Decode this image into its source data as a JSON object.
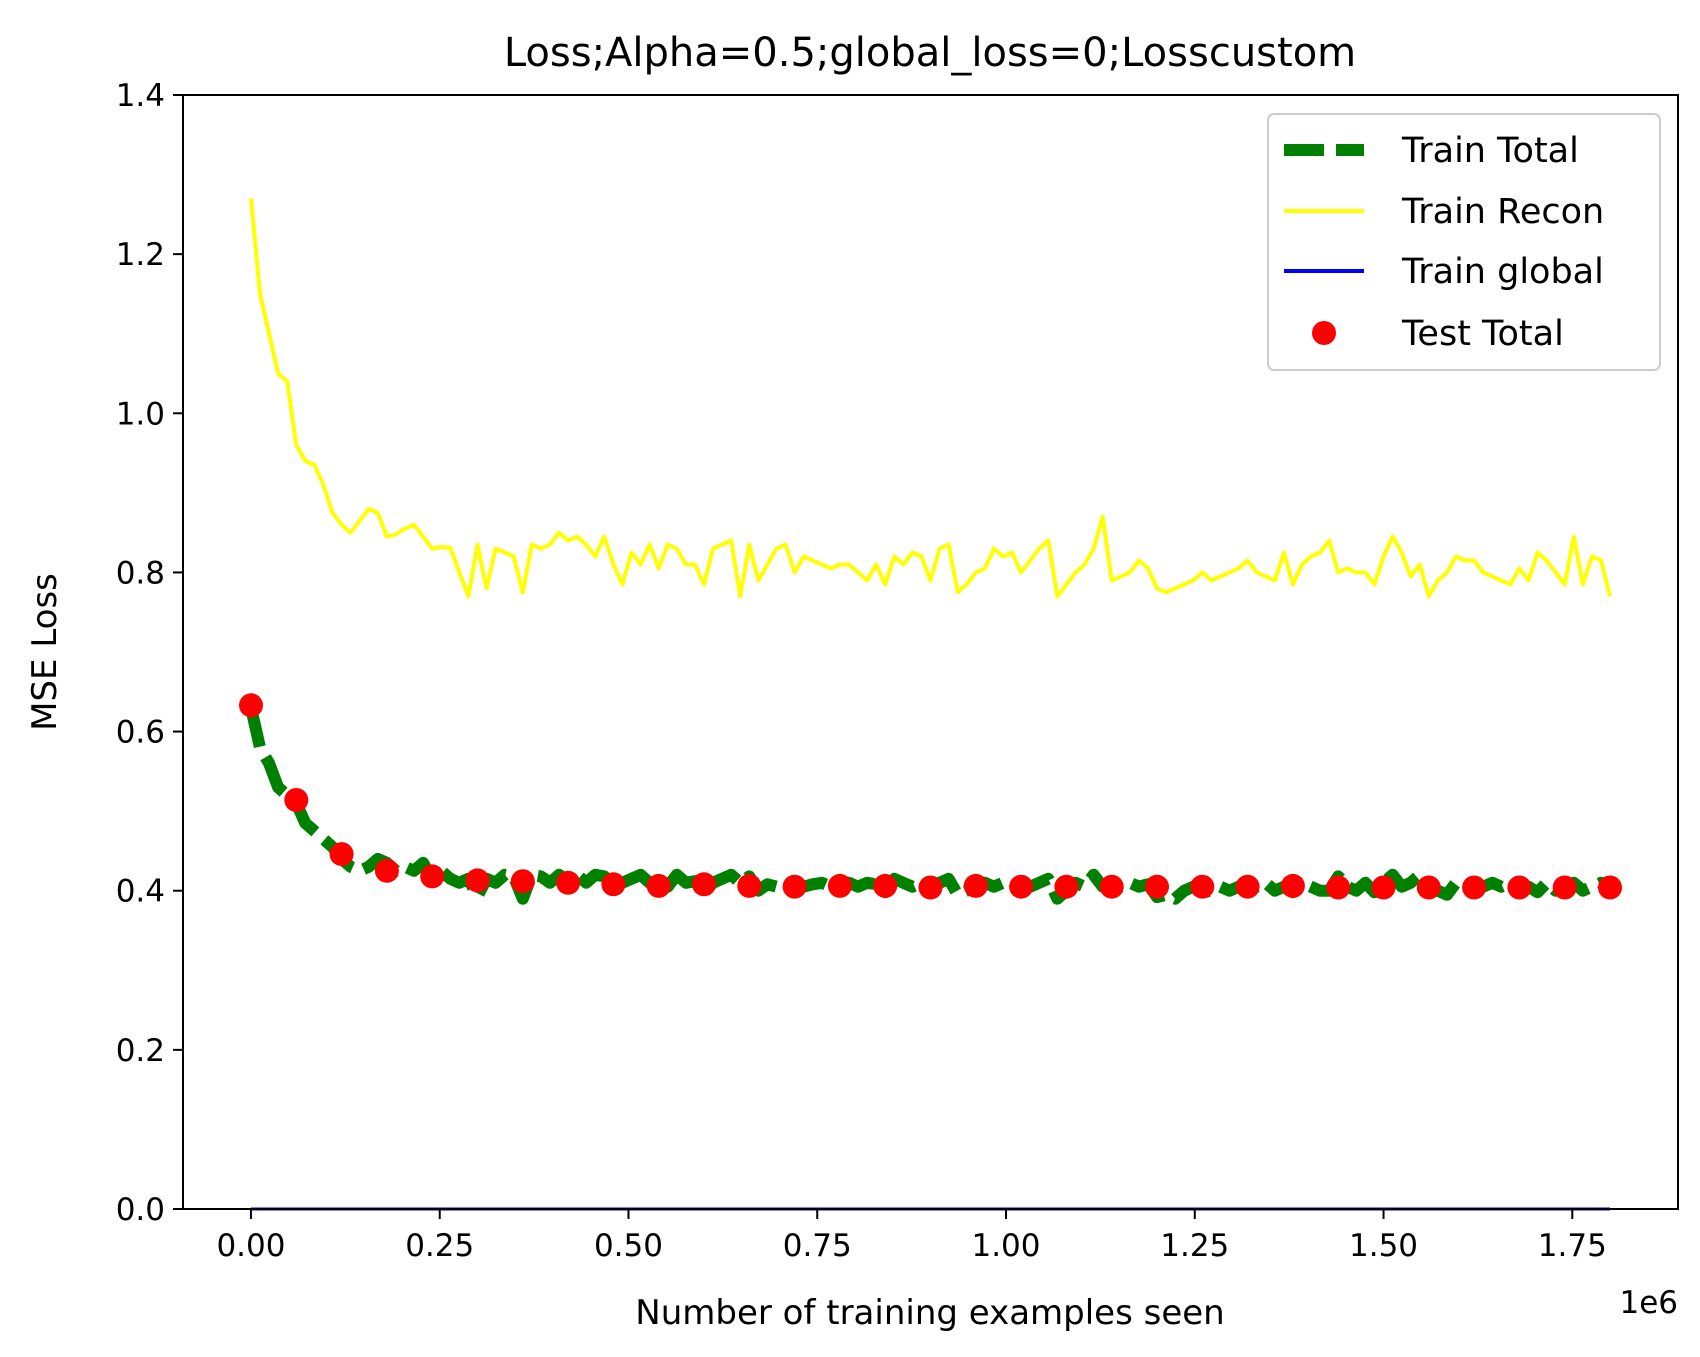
{
  "chart_data": {
    "type": "line",
    "title": "Loss;Alpha=0.5;global_loss=0;Losscustom",
    "xlabel": "Number of training examples seen",
    "ylabel": "MSE Loss",
    "x_offset_label": "1e6",
    "xlim": [
      -0.09,
      1.89
    ],
    "ylim": [
      0.0,
      1.4
    ],
    "x_ticks": [
      0.0,
      0.25,
      0.5,
      0.75,
      1.0,
      1.25,
      1.5,
      1.75
    ],
    "x_tick_labels": [
      "0.00",
      "0.25",
      "0.50",
      "0.75",
      "1.00",
      "1.25",
      "1.50",
      "1.75"
    ],
    "y_ticks": [
      0.0,
      0.2,
      0.4,
      0.6,
      0.8,
      1.0,
      1.2,
      1.4
    ],
    "y_tick_labels": [
      "0.0",
      "0.2",
      "0.4",
      "0.6",
      "0.8",
      "1.0",
      "1.2",
      "1.4"
    ],
    "grid": false,
    "legend_position": "top-right",
    "series": [
      {
        "name": "Train Total",
        "kind": "line",
        "style": "dashed",
        "color": "#008000",
        "x": [
          0.0,
          0.012,
          0.024,
          0.036,
          0.048,
          0.06,
          0.072,
          0.084,
          0.096,
          0.108,
          0.12,
          0.132,
          0.144,
          0.156,
          0.168,
          0.18,
          0.192,
          0.204,
          0.216,
          0.228,
          0.24,
          0.252,
          0.264,
          0.276,
          0.288,
          0.3,
          0.312,
          0.324,
          0.336,
          0.348,
          0.36,
          0.372,
          0.384,
          0.396,
          0.408,
          0.42,
          0.432,
          0.444,
          0.456,
          0.468,
          0.48,
          0.492,
          0.504,
          0.516,
          0.528,
          0.54,
          0.552,
          0.564,
          0.576,
          0.588,
          0.6,
          0.612,
          0.624,
          0.636,
          0.648,
          0.66,
          0.672,
          0.684,
          0.696,
          0.708,
          0.72,
          0.732,
          0.744,
          0.756,
          0.768,
          0.78,
          0.792,
          0.804,
          0.816,
          0.828,
          0.84,
          0.852,
          0.864,
          0.876,
          0.888,
          0.9,
          0.912,
          0.924,
          0.936,
          0.948,
          0.96,
          0.972,
          0.984,
          0.996,
          1.008,
          1.02,
          1.032,
          1.044,
          1.056,
          1.068,
          1.08,
          1.092,
          1.104,
          1.116,
          1.128,
          1.14,
          1.152,
          1.164,
          1.176,
          1.188,
          1.2,
          1.212,
          1.224,
          1.236,
          1.248,
          1.26,
          1.272,
          1.284,
          1.296,
          1.308,
          1.32,
          1.332,
          1.344,
          1.356,
          1.368,
          1.38,
          1.392,
          1.404,
          1.416,
          1.428,
          1.44,
          1.452,
          1.464,
          1.476,
          1.488,
          1.5,
          1.512,
          1.524,
          1.536,
          1.548,
          1.56,
          1.572,
          1.584,
          1.596,
          1.608,
          1.62,
          1.632,
          1.644,
          1.656,
          1.668,
          1.68,
          1.692,
          1.704,
          1.716,
          1.728,
          1.74,
          1.752,
          1.764,
          1.776,
          1.788,
          1.8
        ],
        "y": [
          0.63,
          0.58,
          0.56,
          0.53,
          0.52,
          0.51,
          0.485,
          0.475,
          0.465,
          0.455,
          0.44,
          0.43,
          0.425,
          0.43,
          0.44,
          0.435,
          0.425,
          0.43,
          0.425,
          0.435,
          0.415,
          0.425,
          0.415,
          0.41,
          0.415,
          0.393,
          0.415,
          0.41,
          0.42,
          0.418,
          0.39,
          0.42,
          0.418,
          0.41,
          0.42,
          0.412,
          0.42,
          0.41,
          0.42,
          0.418,
          0.405,
          0.41,
          0.415,
          0.42,
          0.41,
          0.405,
          0.405,
          0.42,
          0.41,
          0.412,
          0.398,
          0.41,
          0.415,
          0.42,
          0.41,
          0.418,
          0.4,
          0.408,
          0.405,
          0.41,
          0.41,
          0.405,
          0.408,
          0.41,
          0.405,
          0.404,
          0.41,
          0.405,
          0.41,
          0.408,
          0.398,
          0.415,
          0.41,
          0.405,
          0.41,
          0.405,
          0.41,
          0.415,
          0.395,
          0.4,
          0.405,
          0.41,
          0.405,
          0.41,
          0.405,
          0.41,
          0.405,
          0.41,
          0.415,
          0.39,
          0.4,
          0.41,
          0.405,
          0.42,
          0.405,
          0.4,
          0.405,
          0.41,
          0.405,
          0.408,
          0.392,
          0.395,
          0.39,
          0.4,
          0.405,
          0.398,
          0.4,
          0.405,
          0.4,
          0.405,
          0.4,
          0.405,
          0.41,
          0.4,
          0.405,
          0.398,
          0.41,
          0.405,
          0.4,
          0.4,
          0.418,
          0.405,
          0.4,
          0.41,
          0.398,
          0.41,
          0.42,
          0.405,
          0.41,
          0.42,
          0.405,
          0.4,
          0.395,
          0.41,
          0.405,
          0.4,
          0.405,
          0.41,
          0.405,
          0.41,
          0.4,
          0.405,
          0.398,
          0.41,
          0.4,
          0.405,
          0.41,
          0.4,
          0.405,
          0.41,
          0.4
        ]
      },
      {
        "name": "Train Recon",
        "kind": "line",
        "style": "solid",
        "color": "#ffff00",
        "x": [
          0.0,
          0.012,
          0.024,
          0.036,
          0.048,
          0.06,
          0.072,
          0.084,
          0.096,
          0.108,
          0.12,
          0.132,
          0.144,
          0.156,
          0.168,
          0.18,
          0.192,
          0.204,
          0.216,
          0.228,
          0.24,
          0.252,
          0.264,
          0.276,
          0.288,
          0.3,
          0.312,
          0.324,
          0.336,
          0.348,
          0.36,
          0.372,
          0.384,
          0.396,
          0.408,
          0.42,
          0.432,
          0.444,
          0.456,
          0.468,
          0.48,
          0.492,
          0.504,
          0.516,
          0.528,
          0.54,
          0.552,
          0.564,
          0.576,
          0.588,
          0.6,
          0.612,
          0.624,
          0.636,
          0.648,
          0.66,
          0.672,
          0.684,
          0.696,
          0.708,
          0.72,
          0.732,
          0.744,
          0.756,
          0.768,
          0.78,
          0.792,
          0.804,
          0.816,
          0.828,
          0.84,
          0.852,
          0.864,
          0.876,
          0.888,
          0.9,
          0.912,
          0.924,
          0.936,
          0.948,
          0.96,
          0.972,
          0.984,
          0.996,
          1.008,
          1.02,
          1.032,
          1.044,
          1.056,
          1.068,
          1.08,
          1.092,
          1.104,
          1.116,
          1.128,
          1.14,
          1.152,
          1.164,
          1.176,
          1.188,
          1.2,
          1.212,
          1.224,
          1.236,
          1.248,
          1.26,
          1.272,
          1.284,
          1.296,
          1.308,
          1.32,
          1.332,
          1.344,
          1.356,
          1.368,
          1.38,
          1.392,
          1.404,
          1.416,
          1.428,
          1.44,
          1.452,
          1.464,
          1.476,
          1.488,
          1.5,
          1.512,
          1.524,
          1.536,
          1.548,
          1.56,
          1.572,
          1.584,
          1.596,
          1.608,
          1.62,
          1.632,
          1.644,
          1.656,
          1.668,
          1.68,
          1.692,
          1.704,
          1.716,
          1.728,
          1.74,
          1.752,
          1.764,
          1.776,
          1.788,
          1.8
        ],
        "y": [
          1.27,
          1.15,
          1.1,
          1.05,
          1.04,
          0.96,
          0.94,
          0.935,
          0.91,
          0.875,
          0.86,
          0.85,
          0.865,
          0.88,
          0.875,
          0.845,
          0.848,
          0.855,
          0.86,
          0.845,
          0.83,
          0.832,
          0.831,
          0.8,
          0.77,
          0.835,
          0.78,
          0.83,
          0.825,
          0.82,
          0.775,
          0.835,
          0.83,
          0.835,
          0.85,
          0.84,
          0.845,
          0.835,
          0.82,
          0.845,
          0.81,
          0.785,
          0.825,
          0.81,
          0.835,
          0.805,
          0.835,
          0.83,
          0.81,
          0.81,
          0.785,
          0.83,
          0.835,
          0.84,
          0.77,
          0.835,
          0.79,
          0.81,
          0.83,
          0.835,
          0.8,
          0.82,
          0.815,
          0.81,
          0.805,
          0.81,
          0.81,
          0.8,
          0.79,
          0.81,
          0.785,
          0.82,
          0.81,
          0.825,
          0.82,
          0.79,
          0.83,
          0.835,
          0.775,
          0.785,
          0.8,
          0.805,
          0.83,
          0.82,
          0.825,
          0.8,
          0.815,
          0.83,
          0.84,
          0.77,
          0.785,
          0.8,
          0.81,
          0.83,
          0.87,
          0.79,
          0.795,
          0.8,
          0.815,
          0.805,
          0.78,
          0.775,
          0.78,
          0.785,
          0.79,
          0.8,
          0.79,
          0.795,
          0.8,
          0.805,
          0.815,
          0.8,
          0.795,
          0.79,
          0.825,
          0.785,
          0.81,
          0.82,
          0.825,
          0.84,
          0.8,
          0.805,
          0.8,
          0.8,
          0.785,
          0.82,
          0.845,
          0.825,
          0.795,
          0.81,
          0.77,
          0.79,
          0.8,
          0.82,
          0.815,
          0.815,
          0.8,
          0.795,
          0.79,
          0.785,
          0.805,
          0.79,
          0.825,
          0.815,
          0.8,
          0.785,
          0.845,
          0.785,
          0.82,
          0.815,
          0.77
        ]
      },
      {
        "name": "Train global",
        "kind": "line",
        "style": "solid",
        "color": "#0000ff",
        "x": [
          0.0,
          1.8
        ],
        "y": [
          0.0,
          0.0
        ]
      },
      {
        "name": "Test Total",
        "kind": "scatter",
        "color": "#ff0000",
        "x": [
          0.0,
          0.06,
          0.12,
          0.18,
          0.24,
          0.3,
          0.36,
          0.42,
          0.48,
          0.54,
          0.6,
          0.66,
          0.72,
          0.78,
          0.84,
          0.9,
          0.96,
          1.02,
          1.08,
          1.14,
          1.2,
          1.26,
          1.32,
          1.38,
          1.44,
          1.5,
          1.56,
          1.62,
          1.68,
          1.74,
          1.8
        ],
        "y": [
          0.633,
          0.514,
          0.446,
          0.425,
          0.418,
          0.413,
          0.412,
          0.41,
          0.408,
          0.406,
          0.408,
          0.406,
          0.405,
          0.406,
          0.406,
          0.404,
          0.406,
          0.405,
          0.405,
          0.405,
          0.405,
          0.405,
          0.405,
          0.406,
          0.404,
          0.404,
          0.404,
          0.404,
          0.404,
          0.404,
          0.404
        ]
      }
    ]
  }
}
